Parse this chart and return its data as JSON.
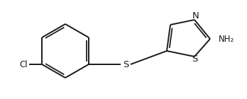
{
  "bg_color": "#ffffff",
  "line_color": "#1a1a1a",
  "lw": 1.4,
  "fs": 8.5,
  "figsize": [
    3.48,
    1.4
  ],
  "dpi": 100,
  "cl_label": "Cl",
  "nh2_label": "NH₂",
  "s_thioether_label": "S",
  "s_thiazole_label": "S",
  "n_label": "N"
}
